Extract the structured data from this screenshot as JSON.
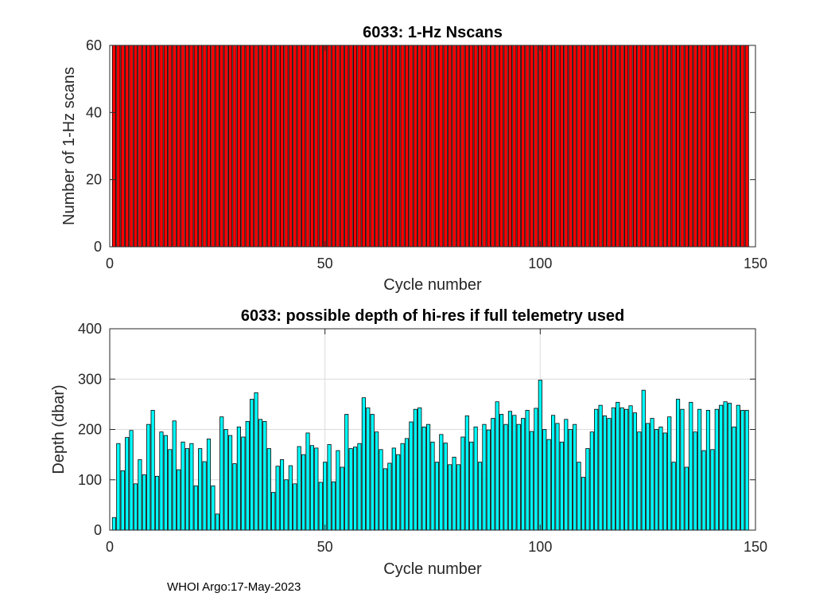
{
  "footer": "WHOI Argo:17-May-2023",
  "chart_data": [
    {
      "type": "bar",
      "title": "6033: 1-Hz Nscans",
      "xlabel": "Cycle number",
      "ylabel": "Number of 1-Hz scans",
      "xlim": [
        0,
        150
      ],
      "ylim": [
        0,
        60
      ],
      "xticks": [
        0,
        50,
        100,
        150
      ],
      "yticks": [
        0,
        20,
        40,
        60
      ],
      "grid": false,
      "bar_color": "#ff0000",
      "x_start": 1,
      "values": [
        60,
        60,
        60,
        60,
        60,
        60,
        60,
        60,
        60,
        60,
        60,
        60,
        60,
        60,
        60,
        60,
        60,
        60,
        60,
        60,
        60,
        60,
        60,
        60,
        60,
        60,
        60,
        60,
        60,
        60,
        60,
        60,
        60,
        60,
        60,
        60,
        60,
        60,
        60,
        60,
        60,
        60,
        60,
        60,
        60,
        60,
        60,
        60,
        60,
        60,
        60,
        60,
        60,
        60,
        60,
        60,
        60,
        60,
        60,
        60,
        60,
        60,
        60,
        60,
        60,
        60,
        60,
        60,
        60,
        60,
        60,
        60,
        60,
        60,
        60,
        60,
        60,
        60,
        60,
        60,
        60,
        60,
        60,
        60,
        60,
        60,
        60,
        60,
        60,
        60,
        60,
        60,
        60,
        60,
        60,
        60,
        60,
        60,
        60,
        60,
        60,
        60,
        60,
        60,
        60,
        60,
        60,
        60,
        60,
        60,
        60,
        60,
        60,
        60,
        60,
        60,
        60,
        60,
        60,
        60,
        60,
        60,
        60,
        60,
        60,
        60,
        60,
        60,
        60,
        60,
        60,
        60,
        60,
        60,
        60,
        60,
        60,
        60,
        60,
        60,
        60,
        60,
        60,
        60,
        60,
        60,
        60,
        60
      ]
    },
    {
      "type": "bar",
      "title": "6033: possible depth of hi-res if full telemetry used",
      "xlabel": "Cycle number",
      "ylabel": "Depth (dbar)",
      "xlim": [
        0,
        150
      ],
      "ylim": [
        0,
        400
      ],
      "xticks": [
        0,
        50,
        100,
        150
      ],
      "yticks": [
        0,
        100,
        200,
        300,
        400
      ],
      "grid": true,
      "bar_color": "#00ffff",
      "x_start": 1,
      "values": [
        25,
        172,
        118,
        184,
        198,
        92,
        140,
        110,
        210,
        238,
        107,
        195,
        188,
        160,
        217,
        120,
        175,
        162,
        172,
        88,
        162,
        136,
        181,
        88,
        32,
        225,
        200,
        188,
        132,
        205,
        185,
        216,
        260,
        273,
        220,
        216,
        162,
        75,
        127,
        140,
        100,
        128,
        92,
        166,
        150,
        193,
        168,
        163,
        95,
        135,
        170,
        96,
        158,
        125,
        230,
        162,
        165,
        172,
        263,
        243,
        230,
        195,
        160,
        122,
        133,
        163,
        150,
        172,
        182,
        215,
        240,
        243,
        205,
        210,
        175,
        135,
        190,
        173,
        130,
        145,
        130,
        185,
        227,
        175,
        205,
        135,
        210,
        199,
        222,
        255,
        230,
        210,
        236,
        228,
        210,
        222,
        238,
        196,
        242,
        298,
        200,
        180,
        228,
        212,
        175,
        220,
        200,
        210,
        135,
        105,
        162,
        195,
        240,
        248,
        227,
        222,
        243,
        254,
        243,
        240,
        247,
        233,
        195,
        278,
        212,
        222,
        200,
        205,
        193,
        225,
        135,
        260,
        240,
        125,
        254,
        195,
        240,
        158,
        238,
        160,
        240,
        248,
        255,
        252,
        205,
        248,
        238,
        238
      ]
    }
  ]
}
